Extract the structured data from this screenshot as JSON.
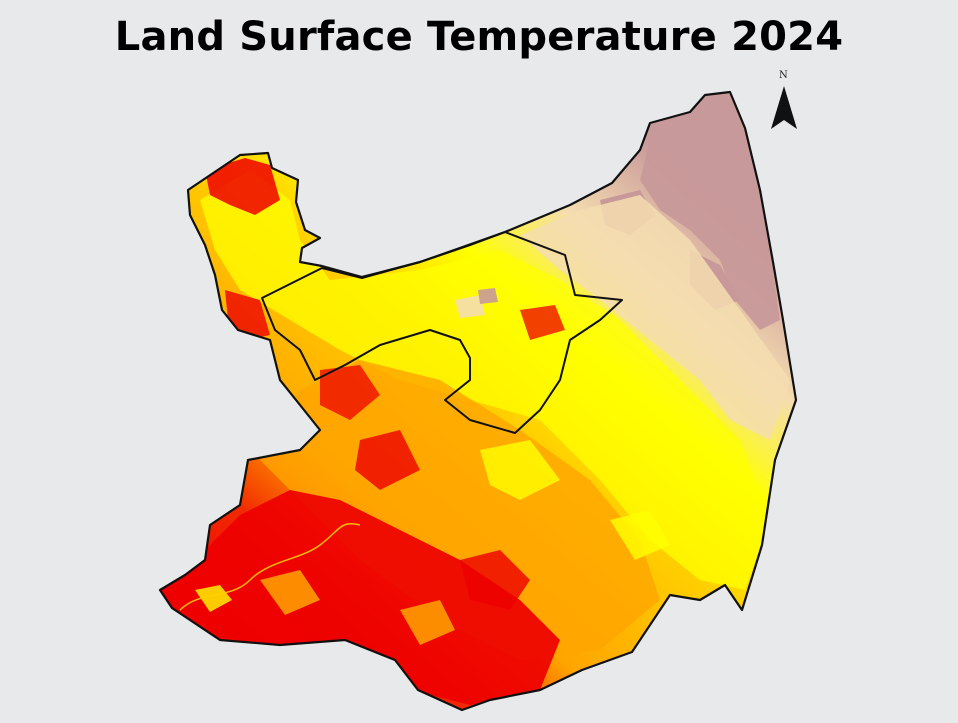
{
  "title": "Land Surface Temperature 2024",
  "north_arrow": {
    "label": "N"
  },
  "colors": {
    "background": "#e8e9eb",
    "very_high": "#ee0000",
    "high": "#ffa500",
    "moderate": "#ffff00",
    "low": "#f5ddb0",
    "very_low": "#c8999a",
    "boundary": "#111111"
  }
}
